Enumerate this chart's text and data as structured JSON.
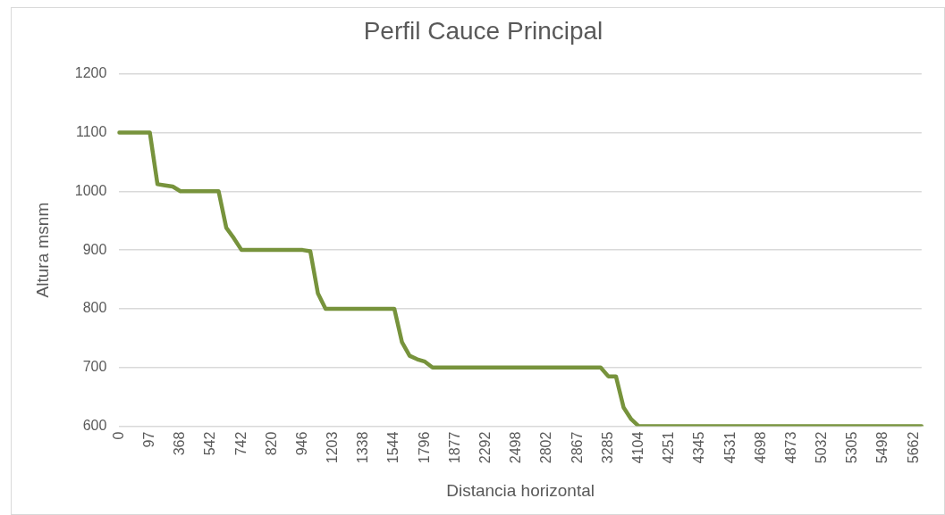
{
  "chart_data": {
    "type": "line",
    "title": "Perfil Cauce Principal",
    "xlabel": "Distancia horizontal",
    "ylabel": "Altura msnm",
    "categories": [
      "0",
      null,
      null,
      null,
      "97",
      null,
      null,
      null,
      "368",
      null,
      null,
      null,
      "542",
      null,
      null,
      null,
      "742",
      null,
      null,
      null,
      "820",
      null,
      null,
      null,
      "946",
      null,
      null,
      null,
      "1203",
      null,
      null,
      null,
      "1338",
      null,
      null,
      null,
      "1544",
      null,
      null,
      null,
      "1796",
      null,
      null,
      null,
      "1877",
      null,
      null,
      null,
      "2292",
      null,
      null,
      null,
      "2498",
      null,
      null,
      null,
      "2802",
      null,
      null,
      null,
      "2867",
      null,
      null,
      null,
      "3285",
      null,
      null,
      null,
      "4104",
      null,
      null,
      null,
      "4251",
      null,
      null,
      null,
      "4345",
      null,
      null,
      null,
      "4531",
      null,
      null,
      null,
      "4698",
      null,
      null,
      null,
      "4873",
      null,
      null,
      null,
      "5032",
      null,
      null,
      null,
      "5305",
      null,
      null,
      null,
      "5498",
      null,
      null,
      null,
      "5662",
      null
    ],
    "series": [
      {
        "color": "#77933c",
        "values": [
          1100,
          1100,
          1100,
          1100,
          1100,
          1012,
          1010,
          1008,
          1000,
          1000,
          1000,
          1000,
          1000,
          1000,
          938,
          920,
          900,
          900,
          900,
          900,
          900,
          900,
          900,
          900,
          900,
          898,
          826,
          800,
          800,
          800,
          800,
          800,
          800,
          800,
          800,
          800,
          800,
          743,
          720,
          714,
          710,
          700,
          700,
          700,
          700,
          700,
          700,
          700,
          700,
          700,
          700,
          700,
          700,
          700,
          700,
          700,
          700,
          700,
          700,
          700,
          700,
          700,
          700,
          700,
          685,
          685,
          632,
          612,
          600,
          600,
          600,
          600,
          600,
          600,
          600,
          600,
          600,
          600,
          600,
          600,
          600,
          600,
          600,
          600,
          600,
          600,
          600,
          600,
          600,
          600,
          600,
          600,
          600,
          600,
          600,
          600,
          600,
          600,
          600,
          600,
          600,
          600,
          600,
          600,
          600,
          600
        ]
      }
    ],
    "ylim": [
      600,
      1200
    ],
    "yticks": [
      600,
      700,
      800,
      900,
      1000,
      1100,
      1200
    ],
    "grid": "y",
    "marker": "none",
    "line_style": "solid"
  }
}
